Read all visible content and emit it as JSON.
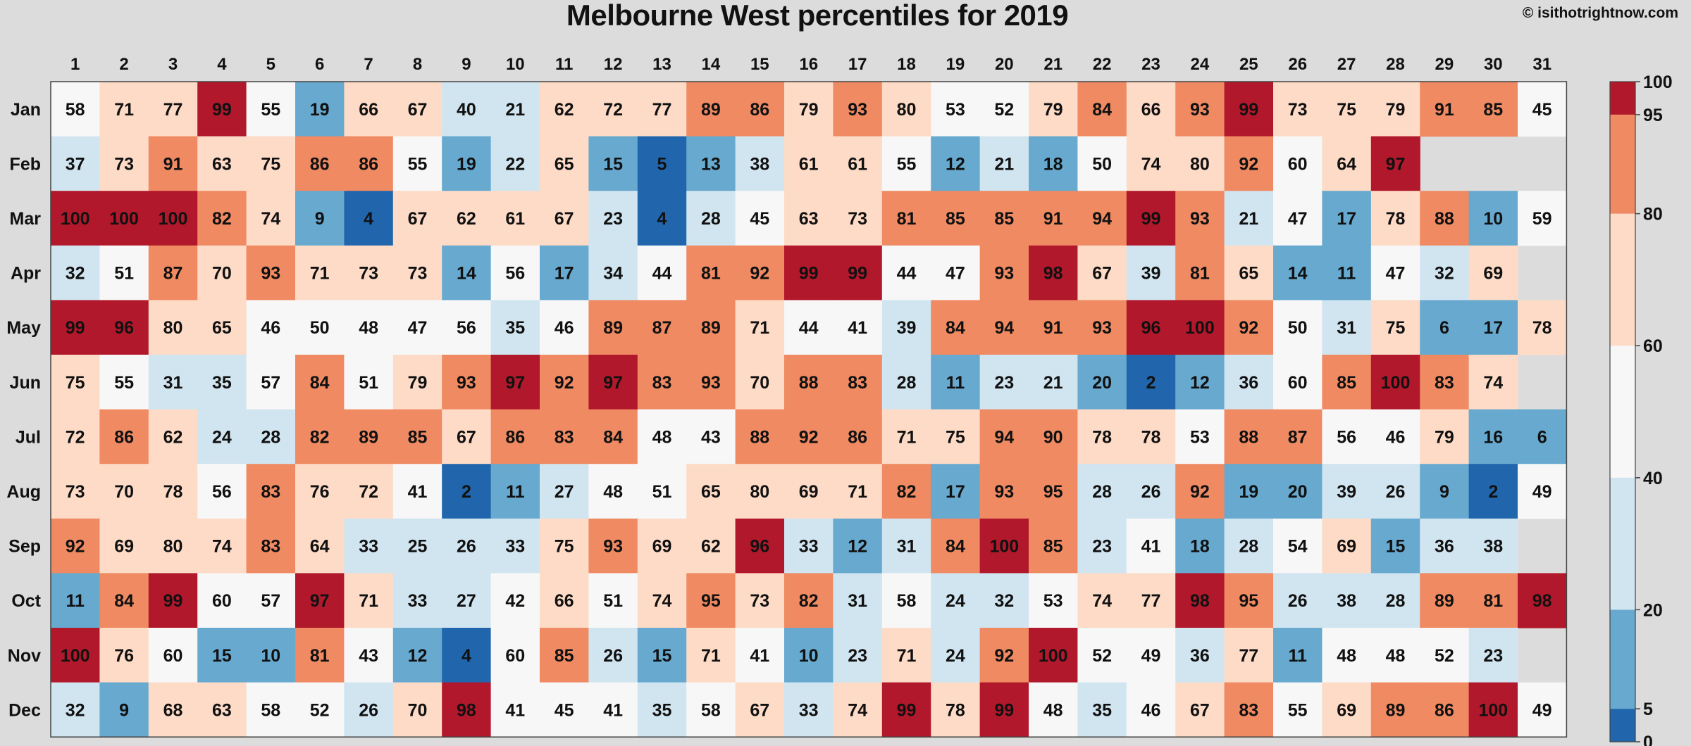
{
  "credit": "© isithotrightnow.com",
  "chart_data": {
    "type": "heatmap",
    "title": "Melbourne West percentiles for 2019",
    "xlabel": "",
    "ylabel": "",
    "x_labels": [
      "1",
      "2",
      "3",
      "4",
      "5",
      "6",
      "7",
      "8",
      "9",
      "10",
      "11",
      "12",
      "13",
      "14",
      "15",
      "16",
      "17",
      "18",
      "19",
      "20",
      "21",
      "22",
      "23",
      "24",
      "25",
      "26",
      "27",
      "28",
      "29",
      "30",
      "31"
    ],
    "y_labels": [
      "Jan",
      "Feb",
      "Mar",
      "Apr",
      "May",
      "Jun",
      "Jul",
      "Aug",
      "Sep",
      "Oct",
      "Nov",
      "Dec"
    ],
    "values": [
      [
        58,
        71,
        77,
        99,
        55,
        19,
        66,
        67,
        40,
        21,
        62,
        72,
        77,
        89,
        86,
        79,
        93,
        80,
        53,
        52,
        79,
        84,
        66,
        93,
        99,
        73,
        75,
        79,
        91,
        85,
        45
      ],
      [
        37,
        73,
        91,
        63,
        75,
        86,
        86,
        55,
        19,
        22,
        65,
        15,
        5,
        13,
        38,
        61,
        61,
        55,
        12,
        21,
        18,
        50,
        74,
        80,
        92,
        60,
        64,
        97,
        null,
        null,
        null
      ],
      [
        100,
        100,
        100,
        82,
        74,
        9,
        4,
        67,
        62,
        61,
        67,
        23,
        4,
        28,
        45,
        63,
        73,
        81,
        85,
        85,
        91,
        94,
        99,
        93,
        21,
        47,
        17,
        78,
        88,
        10,
        59
      ],
      [
        32,
        51,
        87,
        70,
        93,
        71,
        73,
        73,
        14,
        56,
        17,
        34,
        44,
        81,
        92,
        99,
        99,
        44,
        47,
        93,
        98,
        67,
        39,
        81,
        65,
        14,
        11,
        47,
        32,
        69,
        null
      ],
      [
        99,
        96,
        80,
        65,
        46,
        50,
        48,
        47,
        56,
        35,
        46,
        89,
        87,
        89,
        71,
        44,
        41,
        39,
        84,
        94,
        91,
        93,
        96,
        100,
        92,
        50,
        31,
        75,
        6,
        17,
        78
      ],
      [
        75,
        55,
        31,
        35,
        57,
        84,
        51,
        79,
        93,
        97,
        92,
        97,
        83,
        93,
        70,
        88,
        83,
        28,
        11,
        23,
        21,
        20,
        2,
        12,
        36,
        60,
        85,
        100,
        83,
        74,
        null
      ],
      [
        72,
        86,
        62,
        24,
        28,
        82,
        89,
        85,
        67,
        86,
        83,
        84,
        48,
        43,
        88,
        92,
        86,
        71,
        75,
        94,
        90,
        78,
        78,
        53,
        88,
        87,
        56,
        46,
        79,
        16,
        6
      ],
      [
        73,
        70,
        78,
        56,
        83,
        76,
        72,
        41,
        2,
        11,
        27,
        48,
        51,
        65,
        80,
        69,
        71,
        82,
        17,
        93,
        95,
        28,
        26,
        92,
        19,
        20,
        39,
        26,
        9,
        2,
        49
      ],
      [
        92,
        69,
        80,
        74,
        83,
        64,
        33,
        25,
        26,
        33,
        75,
        93,
        69,
        62,
        96,
        33,
        12,
        31,
        84,
        100,
        85,
        23,
        41,
        18,
        28,
        54,
        69,
        15,
        36,
        38,
        null
      ],
      [
        11,
        84,
        99,
        60,
        57,
        97,
        71,
        33,
        27,
        42,
        66,
        51,
        74,
        95,
        73,
        82,
        31,
        58,
        24,
        32,
        53,
        74,
        77,
        98,
        95,
        26,
        38,
        28,
        89,
        81,
        98
      ],
      [
        100,
        76,
        60,
        15,
        10,
        81,
        43,
        12,
        4,
        60,
        85,
        26,
        15,
        71,
        41,
        10,
        23,
        71,
        24,
        92,
        100,
        52,
        49,
        36,
        77,
        11,
        48,
        48,
        52,
        23,
        null
      ],
      [
        32,
        9,
        68,
        63,
        58,
        52,
        26,
        70,
        98,
        41,
        45,
        41,
        35,
        58,
        67,
        33,
        74,
        99,
        78,
        99,
        48,
        35,
        46,
        67,
        83,
        55,
        69,
        89,
        86,
        100,
        49
      ]
    ],
    "colorbar": {
      "ticks": [
        "0",
        "5",
        "20",
        "40",
        "60",
        "80",
        "95",
        "100"
      ],
      "bins": [
        {
          "min": 0,
          "max": 5,
          "color": "#2166ac"
        },
        {
          "min": 5,
          "max": 20,
          "color": "#67a9cf"
        },
        {
          "min": 20,
          "max": 40,
          "color": "#d1e5f0"
        },
        {
          "min": 40,
          "max": 60,
          "color": "#f7f7f7"
        },
        {
          "min": 60,
          "max": 80,
          "color": "#fddbc7"
        },
        {
          "min": 80,
          "max": 95,
          "color": "#ef8a62"
        },
        {
          "min": 95,
          "max": 100,
          "color": "#b2182b"
        }
      ]
    },
    "colors": {
      "background": "#dcdcdc",
      "missing": "#dcdcdc",
      "text": "#111111"
    },
    "grid": false,
    "legend": "right"
  }
}
